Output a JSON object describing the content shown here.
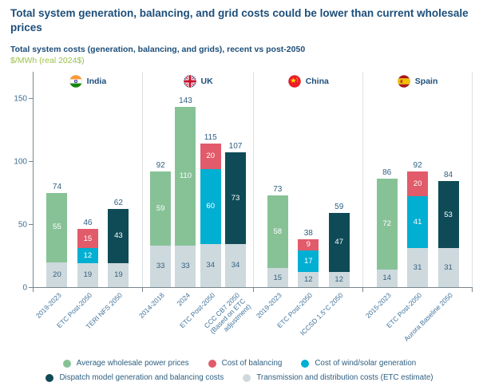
{
  "header": {
    "title": "Total system generation, balancing, and grid costs could be lower than current wholesale prices",
    "subtitle": "Total system costs (generation, balancing, and grids), recent vs post-2050",
    "unit": "$/MWh (real 2024$)"
  },
  "colors": {
    "wholesale": "#87C297",
    "balancing": "#E25B6A",
    "wind_solar": "#00AFD2",
    "dispatch": "#0E4B57",
    "transmission": "#CDD9DD",
    "title_text": "#1D4E79",
    "unit_text": "#9BC24A",
    "axis_text": "#3E6E92",
    "value_text": "#2E5F81"
  },
  "chart_data": {
    "type": "bar",
    "stacked": true,
    "ylabel": "$/MWh (real 2024$)",
    "ylim": [
      0,
      150
    ],
    "yticks": [
      0,
      50,
      100,
      150
    ],
    "panels": [
      {
        "country": "India",
        "flag": "india",
        "bars": [
          {
            "label": "2019-2023",
            "total": 74,
            "segments": [
              {
                "key": "transmission",
                "value": 20
              },
              {
                "key": "wholesale",
                "value": 55
              }
            ]
          },
          {
            "label": "ETC Post-2050",
            "total": 46,
            "segments": [
              {
                "key": "transmission",
                "value": 19
              },
              {
                "key": "wind_solar",
                "value": 12
              },
              {
                "key": "balancing",
                "value": 15
              }
            ]
          },
          {
            "label": "TERI NFS 2050",
            "total": 62,
            "segments": [
              {
                "key": "transmission",
                "value": 19
              },
              {
                "key": "dispatch",
                "value": 43
              }
            ]
          }
        ]
      },
      {
        "country": "UK",
        "flag": "uk",
        "bars": [
          {
            "label": "2014-2018",
            "total": 92,
            "segments": [
              {
                "key": "transmission",
                "value": 33
              },
              {
                "key": "wholesale",
                "value": 59
              }
            ]
          },
          {
            "label": "2024",
            "total": 143,
            "segments": [
              {
                "key": "transmission",
                "value": 33
              },
              {
                "key": "wholesale",
                "value": 110
              }
            ]
          },
          {
            "label": "ETC Post-2050",
            "total": 115,
            "segments": [
              {
                "key": "transmission",
                "value": 34
              },
              {
                "key": "wind_solar",
                "value": 60
              },
              {
                "key": "balancing",
                "value": 20
              }
            ]
          },
          {
            "label": "CCC CB7 2050 (Based on ETC adjustment)",
            "wrap": true,
            "total": 107,
            "segments": [
              {
                "key": "transmission",
                "value": 34
              },
              {
                "key": "dispatch",
                "value": 73
              }
            ]
          }
        ]
      },
      {
        "country": "China",
        "flag": "china",
        "bars": [
          {
            "label": "2019-2023",
            "total": 73,
            "segments": [
              {
                "key": "transmission",
                "value": 15
              },
              {
                "key": "wholesale",
                "value": 58
              }
            ]
          },
          {
            "label": "ETC Post-2050",
            "total": 38,
            "segments": [
              {
                "key": "transmission",
                "value": 12
              },
              {
                "key": "wind_solar",
                "value": 17
              },
              {
                "key": "balancing",
                "value": 9
              }
            ]
          },
          {
            "label": "ICCSD 1.5°C 2050",
            "total": 59,
            "segments": [
              {
                "key": "transmission",
                "value": 12
              },
              {
                "key": "dispatch",
                "value": 47
              }
            ]
          }
        ]
      },
      {
        "country": "Spain",
        "flag": "spain",
        "bars": [
          {
            "label": "2015-2023",
            "total": 86,
            "segments": [
              {
                "key": "transmission",
                "value": 14
              },
              {
                "key": "wholesale",
                "value": 72
              }
            ]
          },
          {
            "label": "ETC Post-2050",
            "total": 92,
            "segments": [
              {
                "key": "transmission",
                "value": 31
              },
              {
                "key": "wind_solar",
                "value": 41
              },
              {
                "key": "balancing",
                "value": 20
              }
            ]
          },
          {
            "label": "Aurora Baseline 2050",
            "total": 84,
            "segments": [
              {
                "key": "transmission",
                "value": 31
              },
              {
                "key": "dispatch",
                "value": 53
              }
            ]
          }
        ]
      }
    ]
  },
  "legend": {
    "rows": [
      [
        {
          "key": "wholesale",
          "label": "Average wholesale power prices"
        },
        {
          "key": "balancing",
          "label": "Cost of balancing"
        },
        {
          "key": "wind_solar",
          "label": "Cost of wind/solar generation"
        }
      ],
      [
        {
          "key": "dispatch",
          "label": "Dispatch model generation and balancing costs"
        },
        {
          "key": "transmission",
          "label": "Transmission and distribution costs (ETC estimate)"
        }
      ]
    ]
  }
}
